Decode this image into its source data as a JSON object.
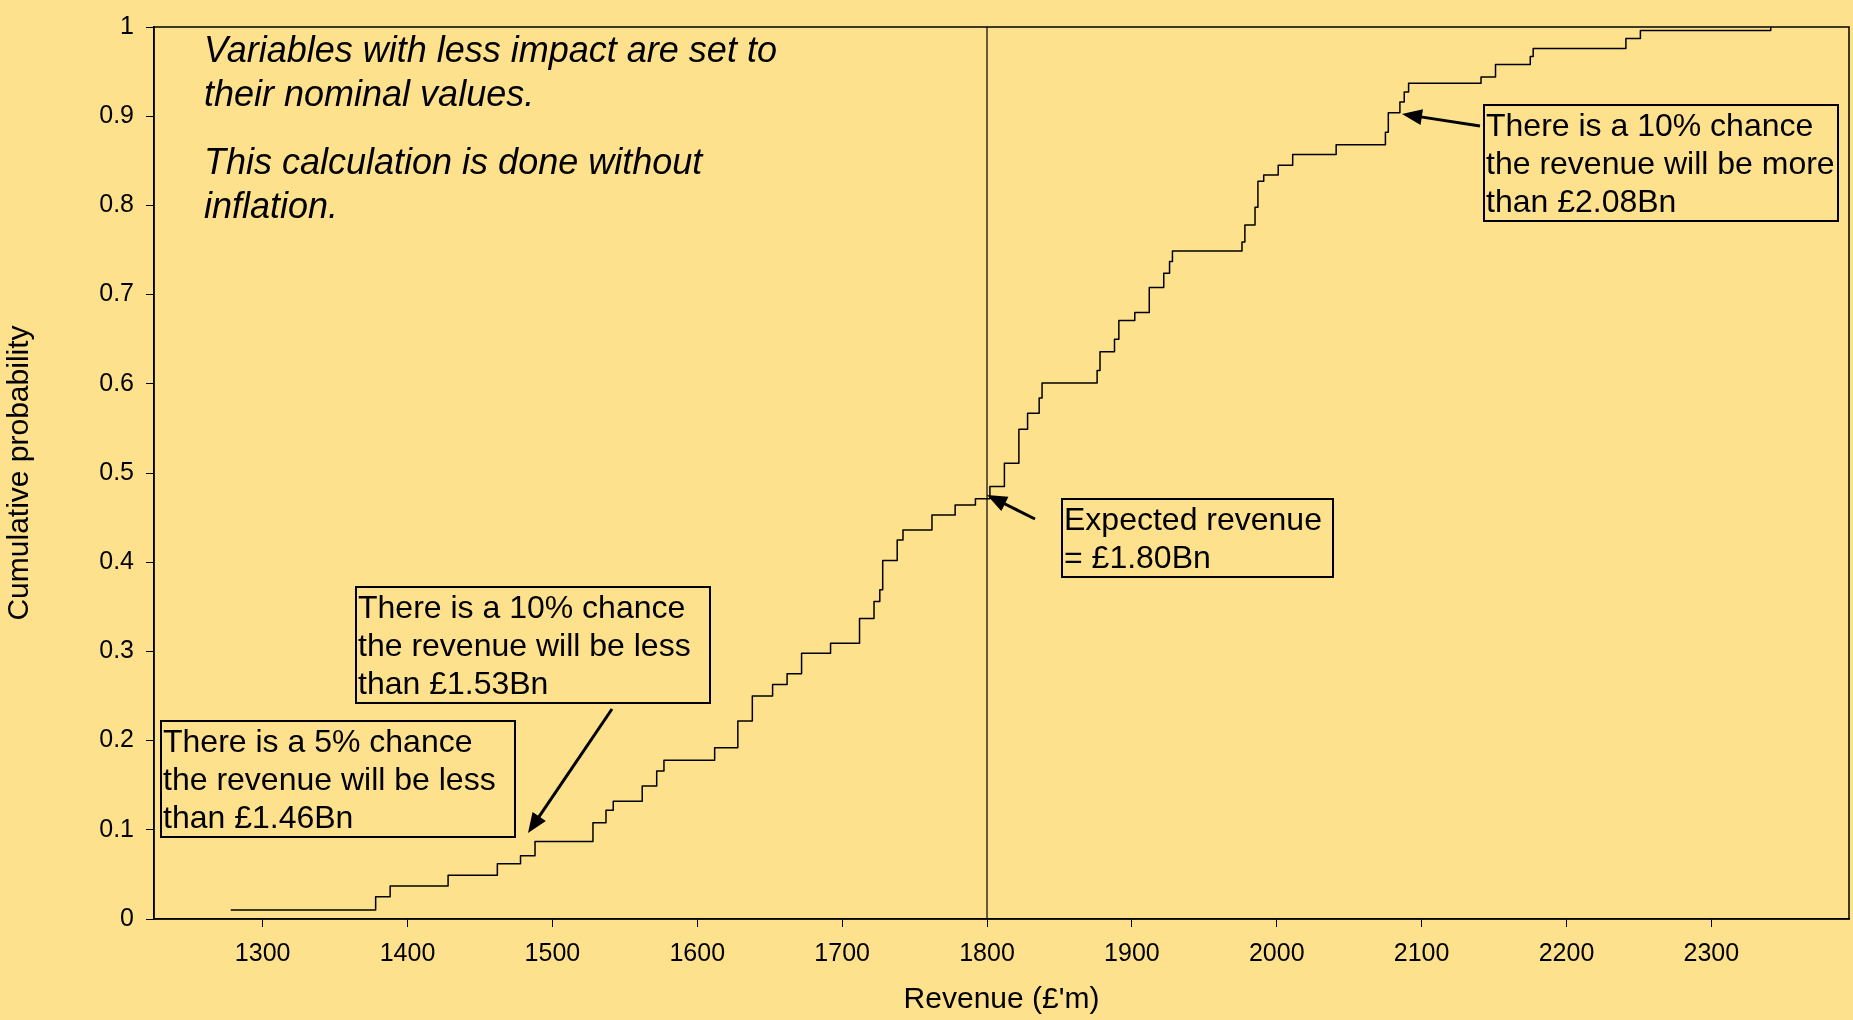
{
  "chart_data": {
    "type": "step",
    "xlabel": "Revenue (£'m)",
    "ylabel": "Cumulative probability",
    "color": "#000000",
    "x": [
      1278,
      1378,
      1388,
      1428,
      1462,
      1478,
      1488,
      1528,
      1537,
      1542,
      1562,
      1572,
      1577,
      1612,
      1628,
      1638,
      1652,
      1662,
      1672,
      1692,
      1712,
      1722,
      1726,
      1728,
      1738,
      1742,
      1762,
      1778,
      1792,
      1802,
      1812,
      1822,
      1828,
      1836,
      1838,
      1876,
      1878,
      1888,
      1891,
      1902,
      1912,
      1922,
      1926,
      1928,
      1976,
      1978,
      1985,
      1987,
      1991,
      2001,
      2011,
      2041,
      2075,
      2077,
      2085,
      2088,
      2091,
      2141,
      2151,
      2175,
      2177,
      2241,
      2251,
      2341
    ],
    "values": [
      0.01,
      0.025,
      0.037,
      0.049,
      0.062,
      0.071,
      0.087,
      0.108,
      0.122,
      0.132,
      0.149,
      0.166,
      0.178,
      0.192,
      0.222,
      0.25,
      0.263,
      0.275,
      0.298,
      0.309,
      0.337,
      0.356,
      0.369,
      0.402,
      0.425,
      0.436,
      0.453,
      0.464,
      0.471,
      0.485,
      0.511,
      0.549,
      0.567,
      0.584,
      0.601,
      0.615,
      0.636,
      0.65,
      0.671,
      0.68,
      0.708,
      0.724,
      0.737,
      0.749,
      0.759,
      0.778,
      0.798,
      0.827,
      0.834,
      0.845,
      0.857,
      0.868,
      0.882,
      0.904,
      0.916,
      0.927,
      0.937,
      0.944,
      0.958,
      0.967,
      0.976,
      0.987,
      0.996,
      1.0
    ],
    "xlim": [
      1225,
      2395
    ],
    "xticks": [
      1300,
      1400,
      1500,
      1600,
      1700,
      1800,
      1900,
      2000,
      2100,
      2200,
      2300
    ],
    "ylim": [
      0,
      1
    ],
    "yticks": [
      0,
      0.1,
      0.2,
      0.3,
      0.4,
      0.5,
      0.6,
      0.7,
      0.8,
      0.9,
      1
    ],
    "ref_lines": [
      {
        "axis": "x",
        "value": 1800,
        "color": "#000000"
      }
    ],
    "annotations": [
      "Variables with less impact are set to their nominal values.",
      "This calculation is done without inflation.",
      "There is a 5% chance the revenue will be less than £1.46Bn",
      "There is a 10% chance the revenue will be less than £1.53Bn",
      "Expected revenue = £1.80Bn",
      "There is a 10% chance the revenue will be more than £2.08Bn"
    ],
    "legend": false
  }
}
